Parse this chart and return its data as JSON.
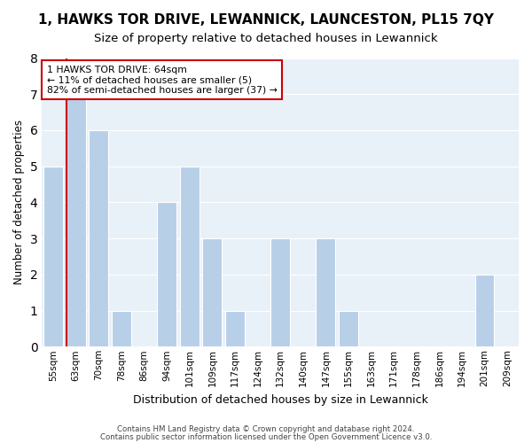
{
  "title": "1, HAWKS TOR DRIVE, LEWANNICK, LAUNCESTON, PL15 7QY",
  "subtitle": "Size of property relative to detached houses in Lewannick",
  "xlabel": "Distribution of detached houses by size in Lewannick",
  "ylabel": "Number of detached properties",
  "bar_labels": [
    "55sqm",
    "63sqm",
    "70sqm",
    "78sqm",
    "86sqm",
    "94sqm",
    "101sqm",
    "109sqm",
    "117sqm",
    "124sqm",
    "132sqm",
    "140sqm",
    "147sqm",
    "155sqm",
    "163sqm",
    "171sqm",
    "178sqm",
    "186sqm",
    "194sqm",
    "201sqm",
    "209sqm"
  ],
  "bar_values": [
    5,
    7,
    6,
    1,
    0,
    4,
    5,
    3,
    1,
    0,
    3,
    0,
    3,
    1,
    0,
    0,
    0,
    0,
    0,
    2,
    0
  ],
  "bar_color": "#b8cfe8",
  "red_line_index": 1,
  "red_line_color": "#cc0000",
  "annotation_line1": "1 HAWKS TOR DRIVE: 64sqm",
  "annotation_line2": "← 11% of detached houses are smaller (5)",
  "annotation_line3": "82% of semi-detached houses are larger (37) →",
  "annotation_box_color": "#ffffff",
  "annotation_box_edge": "#cc0000",
  "ylim": [
    0,
    8
  ],
  "yticks": [
    0,
    1,
    2,
    3,
    4,
    5,
    6,
    7,
    8
  ],
  "bg_color": "#e8f0f8",
  "footer1": "Contains HM Land Registry data © Crown copyright and database right 2024.",
  "footer2": "Contains public sector information licensed under the Open Government Licence v3.0.",
  "title_fontsize": 11,
  "subtitle_fontsize": 9.5,
  "ylabel_fontsize": 8.5,
  "xlabel_fontsize": 9
}
